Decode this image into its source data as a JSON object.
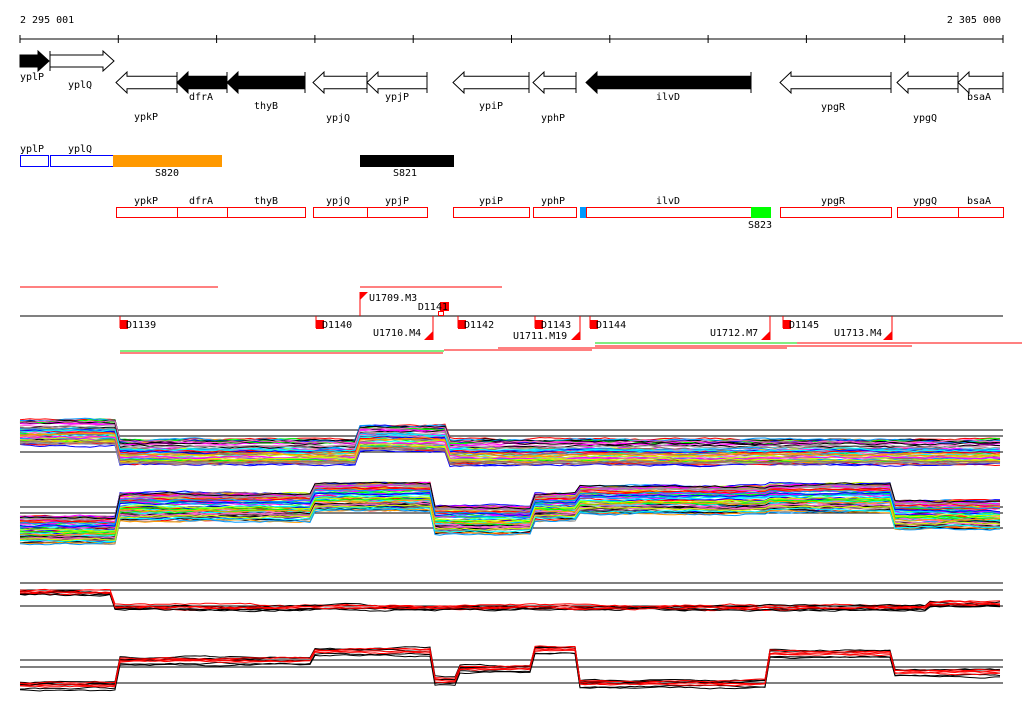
{
  "scale": {
    "start_label": "2 295 001",
    "end_label": "2 305 000"
  },
  "genes": [
    {
      "name": "yplP",
      "strand": "+",
      "filled": true
    },
    {
      "name": "yplQ",
      "strand": "+",
      "filled": false
    },
    {
      "name": "ypkP",
      "strand": "-",
      "filled": false
    },
    {
      "name": "dfrA",
      "strand": "-",
      "filled": true
    },
    {
      "name": "thyB",
      "strand": "-",
      "filled": true
    },
    {
      "name": "ypjQ",
      "strand": "-",
      "filled": false
    },
    {
      "name": "ypjP",
      "strand": "-",
      "filled": false
    },
    {
      "name": "ypiP",
      "strand": "-",
      "filled": false
    },
    {
      "name": "yphP",
      "strand": "-",
      "filled": false
    },
    {
      "name": "ilvD",
      "strand": "-",
      "filled": true
    },
    {
      "name": "ypgR",
      "strand": "-",
      "filled": false
    },
    {
      "name": "ypgQ",
      "strand": "-",
      "filled": false
    },
    {
      "name": "bsaA",
      "strand": "-",
      "filled": false
    }
  ],
  "plus_track": [
    {
      "label": "yplP",
      "color": "#0000ff"
    },
    {
      "label": "yplQ",
      "color": "#0000ff"
    },
    {
      "label": "S820",
      "color": "#ff9900"
    },
    {
      "label": "S821",
      "color": "#000000"
    }
  ],
  "minus_track": [
    {
      "label": "ypkP"
    },
    {
      "label": "dfrA"
    },
    {
      "label": "thyB"
    },
    {
      "label": "ypjQ"
    },
    {
      "label": "ypjP"
    },
    {
      "label": "ypiP"
    },
    {
      "label": "yphP"
    },
    {
      "label": "ilvD"
    },
    {
      "label": "S823"
    },
    {
      "label": "ypgR"
    },
    {
      "label": "ypgQ"
    },
    {
      "label": "bsaA"
    }
  ],
  "segment_colors": {
    "S823": "#00ff00",
    "ilvD_start": "#0099ff",
    "box_outline": "#ff0000"
  },
  "features": {
    "downstream": [
      "D1139",
      "D1140",
      "D1141",
      "D1142",
      "D1143",
      "D1144",
      "D1145"
    ],
    "upstream": [
      "U1709.M3",
      "U1710.M4",
      "U1711.M19",
      "U1712.M7",
      "U1713.M4"
    ]
  },
  "trace_palette": [
    "#ff0000",
    "#00ff00",
    "#0000ff",
    "#ff00ff",
    "#00ffff",
    "#ff9900",
    "#999999",
    "#ccff00",
    "#0099ff",
    "#000000",
    "#996666",
    "#ff66cc"
  ]
}
